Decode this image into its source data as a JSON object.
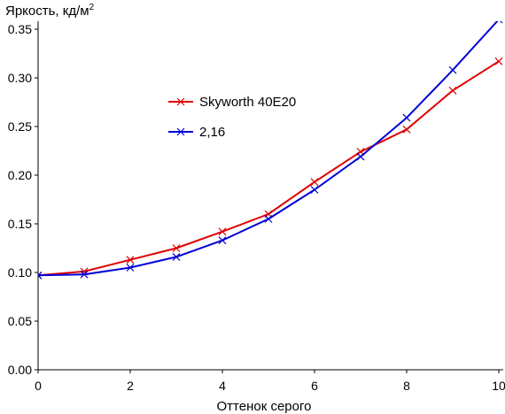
{
  "chart_data": {
    "type": "line",
    "ylabel": "Яркость, кд/м",
    "ylabel_sup": "2",
    "xlabel": "Оттенок серого",
    "xlim": [
      0,
      10
    ],
    "ylim": [
      0,
      0.35
    ],
    "x_ticks": [
      0,
      2,
      4,
      6,
      8,
      10
    ],
    "x_tick_labels": [
      "0",
      "2",
      "4",
      "6",
      "8",
      "10"
    ],
    "y_ticks": [
      0,
      0.05,
      0.1,
      0.15,
      0.2,
      0.25,
      0.3,
      0.35
    ],
    "y_tick_labels": [
      "0.00",
      "0.05",
      "0.10",
      "0.15",
      "0.20",
      "0.25",
      "0.30",
      "0.35"
    ],
    "grid": false,
    "legend_position": "center-left",
    "marker": "x",
    "series": [
      {
        "name": "Skyworth 40E20",
        "color": "#e00000",
        "x": [
          0,
          1,
          2,
          3,
          4,
          5,
          6,
          7,
          8,
          9,
          10
        ],
        "y": [
          0.097,
          0.101,
          0.113,
          0.125,
          0.142,
          0.16,
          0.193,
          0.224,
          0.247,
          0.287,
          0.317
        ]
      },
      {
        "name": "2,16",
        "color": "#0000d8",
        "x": [
          0,
          1,
          2,
          3,
          4,
          5,
          6,
          7,
          8,
          9,
          10
        ],
        "y": [
          0.097,
          0.098,
          0.105,
          0.116,
          0.133,
          0.155,
          0.185,
          0.219,
          0.259,
          0.308,
          0.36
        ]
      }
    ]
  }
}
